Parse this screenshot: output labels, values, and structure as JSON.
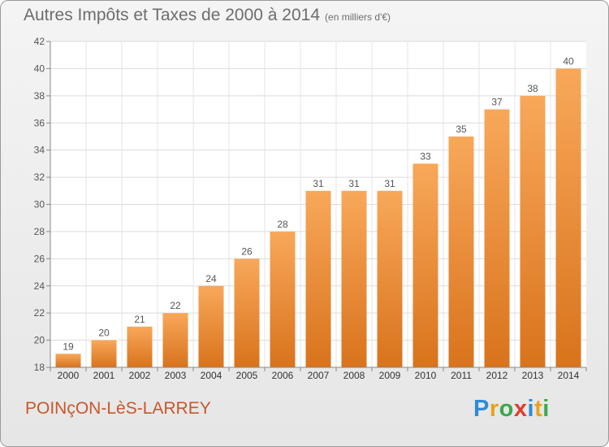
{
  "chart_data": {
    "type": "bar",
    "title": "Autres Impôts et Taxes de 2000 à 2014",
    "subtitle": "(en milliers d'€)",
    "categories": [
      "2000",
      "2001",
      "2002",
      "2003",
      "2004",
      "2005",
      "2006",
      "2007",
      "2008",
      "2009",
      "2010",
      "2011",
      "2012",
      "2013",
      "2014"
    ],
    "values": [
      19,
      20,
      21,
      22,
      24,
      26,
      28,
      31,
      31,
      31,
      33,
      35,
      37,
      38,
      40
    ],
    "ylim": [
      18,
      42
    ],
    "yticks": [
      18,
      20,
      22,
      24,
      26,
      28,
      30,
      32,
      34,
      36,
      38,
      40,
      42
    ],
    "grid": true,
    "bar_color_top": "#f8a85a",
    "bar_color_bottom": "#d9731c"
  },
  "footer": {
    "commune": "POINçON-LèS-LARREY"
  },
  "logo": {
    "letters": [
      {
        "char": "P",
        "color": "#2e8bd6"
      },
      {
        "char": "r",
        "color": "#e8a21c"
      },
      {
        "char": "o",
        "color": "#3aa84a"
      },
      {
        "char": "x",
        "color": "#e23a2c"
      },
      {
        "char": "i",
        "color": "#2e8bd6"
      },
      {
        "char": "t",
        "color": "#e8a21c"
      },
      {
        "char": "i",
        "color": "#3aa84a"
      }
    ]
  }
}
